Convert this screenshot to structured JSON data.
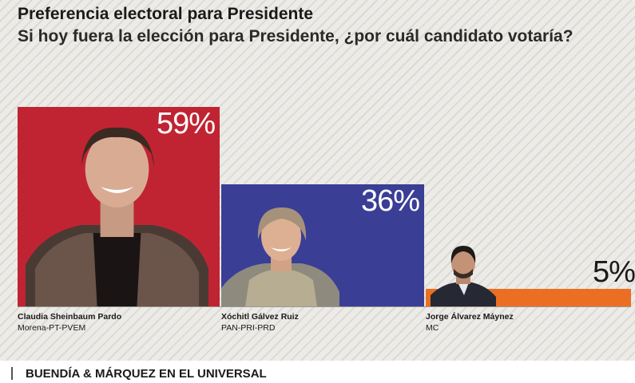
{
  "chart_data": {
    "type": "bar",
    "title": "Preferencia electoral para Presidente",
    "subtitle": "Si hoy fuera la elección para Presidente, ¿por cuál candidato votaría?",
    "categories": [
      "Claudia Sheinbaum Pardo",
      "Xóchitl Gálvez Ruiz",
      "Jorge Álvarez Máynez"
    ],
    "parties": [
      "Morena-PT-PVEM",
      "PAN-PRI-PRD",
      "MC"
    ],
    "values": [
      59,
      36,
      5
    ],
    "value_labels": [
      "59%",
      "36%",
      "5%"
    ],
    "colors": [
      "#c02433",
      "#3a3e95",
      "#ea6f23"
    ],
    "ylim": [
      0,
      59
    ],
    "grid": false
  },
  "source": "BUENDÍA & MÁRQUEZ EN EL UNIVERSAL"
}
